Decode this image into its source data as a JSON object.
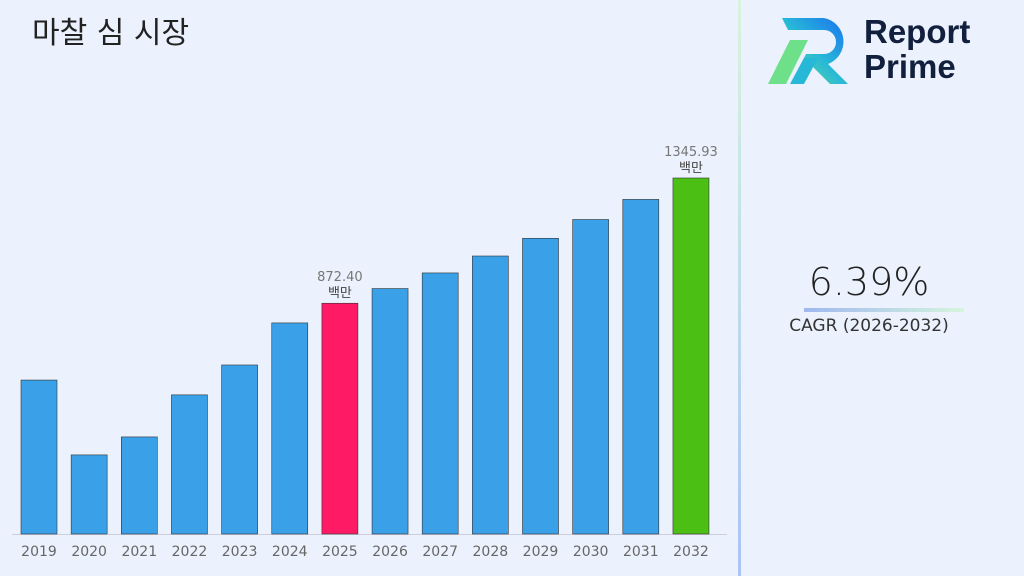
{
  "title": "마찰 심 시장",
  "logo": {
    "line1": "Report",
    "line2": "Prime"
  },
  "cagr": {
    "value": "6.39%",
    "label": "CAGR (2026-2032)"
  },
  "colors": {
    "bar": "#3aa0e8",
    "highlight_current": "#ff1a66",
    "highlight_final": "#4cbf14"
  },
  "chart_data": {
    "type": "bar",
    "categories": [
      "2019",
      "2020",
      "2021",
      "2022",
      "2023",
      "2024",
      "2025",
      "2026",
      "2027",
      "2028",
      "2029",
      "2030",
      "2031",
      "2032"
    ],
    "values": [
      582,
      299,
      367,
      526,
      639,
      798,
      872.4,
      928,
      987,
      1051,
      1118,
      1189,
      1265,
      1345.93
    ],
    "annotations": [
      {
        "category": "2025",
        "value": "872.40",
        "unit": "백만"
      },
      {
        "category": "2032",
        "value": "1345.93",
        "unit": "백만"
      }
    ],
    "ylim": [
      0,
      1345.93
    ],
    "grid": false,
    "xlabel": "",
    "ylabel": ""
  }
}
